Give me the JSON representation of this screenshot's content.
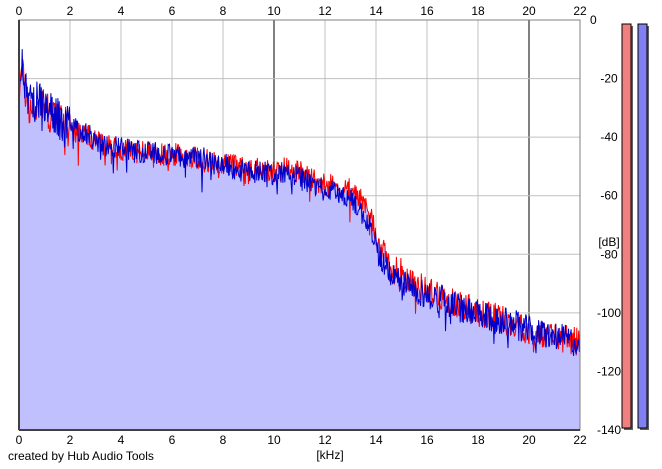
{
  "footer": {
    "credit": "created by Hub Audio Tools"
  },
  "chart_data": {
    "type": "line",
    "x_unit_label": "[kHz]",
    "y_unit_label": "[dB]",
    "xlim": [
      0,
      22
    ],
    "ylim": [
      -140,
      0
    ],
    "x_ticks": [
      0,
      2,
      4,
      6,
      8,
      10,
      12,
      14,
      16,
      18,
      20,
      22
    ],
    "y_ticks": [
      0,
      -20,
      -40,
      -60,
      -80,
      -100,
      -120,
      -140
    ],
    "grid": true,
    "series": [
      {
        "color": "#ff0000",
        "x": [
          0,
          0.1,
          0.3,
          0.5,
          0.8,
          1.0,
          1.3,
          1.6,
          2.0,
          2.5,
          3.0,
          3.5,
          4.0,
          4.5,
          5.0,
          5.5,
          6.0,
          6.5,
          7.0,
          7.5,
          8.0,
          8.5,
          9.0,
          9.5,
          10.0,
          10.5,
          11.0,
          11.5,
          12.0,
          12.5,
          13.0,
          13.3,
          13.6,
          13.9,
          14.1,
          14.4,
          14.7,
          15.0,
          15.5,
          16.0,
          16.5,
          17.0,
          17.5,
          18.0,
          18.5,
          19.0,
          19.5,
          20.0,
          20.5,
          21.0,
          21.5,
          22.0
        ],
        "values": [
          -22,
          -18,
          -26,
          -32,
          -28,
          -30,
          -33,
          -35,
          -37,
          -39,
          -41,
          -43,
          -44,
          -45,
          -45,
          -46,
          -46,
          -46,
          -47,
          -48,
          -49,
          -50,
          -51,
          -50,
          -52,
          -50,
          -52,
          -54,
          -56,
          -57,
          -58,
          -60,
          -64,
          -70,
          -76,
          -82,
          -85,
          -86,
          -90,
          -92,
          -94,
          -96,
          -98,
          -100,
          -101,
          -102,
          -104,
          -106,
          -107,
          -108,
          -109,
          -110
        ]
      },
      {
        "color": "#0000cc",
        "x": [
          0,
          0.1,
          0.3,
          0.5,
          0.8,
          1.0,
          1.3,
          1.6,
          2.0,
          2.5,
          3.0,
          3.5,
          4.0,
          4.5,
          5.0,
          5.5,
          6.0,
          6.5,
          7.0,
          7.5,
          8.0,
          8.5,
          9.0,
          9.5,
          10.0,
          10.5,
          11.0,
          11.5,
          12.0,
          12.5,
          13.0,
          13.3,
          13.6,
          13.9,
          14.1,
          14.4,
          14.7,
          15.0,
          15.5,
          16.0,
          16.5,
          17.0,
          17.5,
          18.0,
          18.5,
          19.0,
          19.5,
          20.0,
          20.5,
          21.0,
          21.5,
          22.0
        ],
        "values": [
          -20,
          -14,
          -24,
          -30,
          -27,
          -29,
          -32,
          -34,
          -36,
          -38,
          -41,
          -43,
          -44,
          -45,
          -45,
          -46,
          -46,
          -47,
          -47,
          -48,
          -49,
          -51,
          -52,
          -51,
          -53,
          -52,
          -54,
          -56,
          -58,
          -59,
          -61,
          -64,
          -68,
          -73,
          -79,
          -85,
          -88,
          -89,
          -92,
          -94,
          -95,
          -97,
          -99,
          -101,
          -102,
          -103,
          -104,
          -106,
          -107,
          -108,
          -109,
          -111
        ]
      }
    ],
    "level_meters": [
      {
        "color": "#f08080",
        "value_db": -140
      },
      {
        "color": "#8080f0",
        "value_db": -140
      }
    ]
  }
}
